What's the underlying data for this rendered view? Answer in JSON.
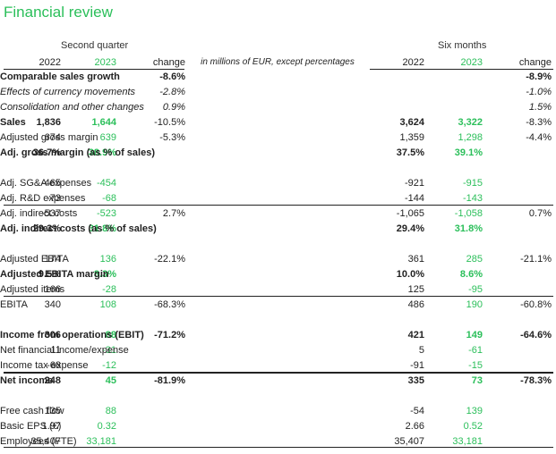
{
  "title": "Financial review",
  "groups": {
    "quarter": "Second quarter",
    "six_months": "Six months"
  },
  "header": {
    "y2022": "2022",
    "y2023": "2023",
    "change": "change",
    "label": "in millions of EUR, except percentages"
  },
  "rows": [
    {
      "q22": "",
      "q23": "",
      "qch": "-8.6%",
      "label": "Comparable sales growth",
      "s22": "",
      "s23": "",
      "sch": "-8.9%"
    },
    {
      "q22": "",
      "q23": "",
      "qch": "-2.8%",
      "label": "Effects of currency movements",
      "s22": "",
      "s23": "",
      "sch": "-1.0%"
    },
    {
      "q22": "",
      "q23": "",
      "qch": "0.9%",
      "label": "Consolidation and other changes",
      "s22": "",
      "s23": "",
      "sch": "1.5%"
    },
    {
      "q22": "1,836",
      "q23": "1,644",
      "qch": "-10.5%",
      "label": "Sales",
      "s22": "3,624",
      "s23": "3,322",
      "sch": "-8.3%"
    },
    {
      "q22": "674",
      "q23": "639",
      "qch": "-5.3%",
      "label": "Adjusted gross margin",
      "s22": "1,359",
      "s23": "1,298",
      "sch": "-4.4%"
    },
    {
      "q22": "36.7%",
      "q23": "38.9%",
      "qch": "",
      "label": "Adj. gross margin (as % of sales)",
      "s22": "37.5%",
      "s23": "39.1%",
      "sch": ""
    },
    {
      "q22": "-465",
      "q23": "-454",
      "qch": "",
      "label": "Adj. SG&A expenses",
      "s22": "-921",
      "s23": "-915",
      "sch": ""
    },
    {
      "q22": "-73",
      "q23": "-68",
      "qch": "",
      "label": "Adj. R&D expenses",
      "s22": "-144",
      "s23": "-143",
      "sch": ""
    },
    {
      "q22": "-537",
      "q23": "-523",
      "qch": "2.7%",
      "label": "Adj. indirect costs",
      "s22": "-1,065",
      "s23": "-1,058",
      "sch": "0.7%"
    },
    {
      "q22": "29.3%",
      "q23": "31.8%",
      "qch": "",
      "label": "Adj. indirect costs (as % of sales)",
      "s22": "29.4%",
      "s23": "31.8%",
      "sch": ""
    },
    {
      "q22": "174",
      "q23": "136",
      "qch": "-22.1%",
      "label": "Adjusted EBITA",
      "s22": "361",
      "s23": "285",
      "sch": "-21.1%"
    },
    {
      "q22": "9.5%",
      "q23": "8.3%",
      "qch": "",
      "label": "Adjusted EBITA margin",
      "s22": "10.0%",
      "s23": "8.6%",
      "sch": ""
    },
    {
      "q22": "166",
      "q23": "-28",
      "qch": "",
      "label": "Adjusted items",
      "s22": "125",
      "s23": "-95",
      "sch": ""
    },
    {
      "q22": "340",
      "q23": "108",
      "qch": "-68.3%",
      "label": "EBITA",
      "s22": "486",
      "s23": "190",
      "sch": "-60.8%"
    },
    {
      "q22": "306",
      "q23": "88",
      "qch": "-71.2%",
      "label": "Income from operations (EBIT)",
      "s22": "421",
      "s23": "149",
      "sch": "-64.6%"
    },
    {
      "q22": "11",
      "q23": "-31",
      "qch": "",
      "label": "Net financial income/expense",
      "s22": "5",
      "s23": "-61",
      "sch": ""
    },
    {
      "q22": "-68",
      "q23": "-12",
      "qch": "",
      "label": "Income tax expense",
      "s22": "-91",
      "s23": "-15",
      "sch": ""
    },
    {
      "q22": "248",
      "q23": "45",
      "qch": "-81.9%",
      "label": "Net income",
      "s22": "335",
      "s23": "73",
      "sch": "-78.3%"
    },
    {
      "q22": "135",
      "q23": "88",
      "qch": "",
      "label": "Free cash flow",
      "s22": "-54",
      "s23": "139",
      "sch": ""
    },
    {
      "q22": "1.97",
      "q23": "0.32",
      "qch": "",
      "label": "Basic EPS (€)",
      "s22": "2.66",
      "s23": "0.52",
      "sch": ""
    },
    {
      "q22": "35,407",
      "q23": "33,181",
      "qch": "",
      "label": "Employees (FTE)",
      "s22": "35,407",
      "s23": "33,181",
      "sch": ""
    }
  ]
}
